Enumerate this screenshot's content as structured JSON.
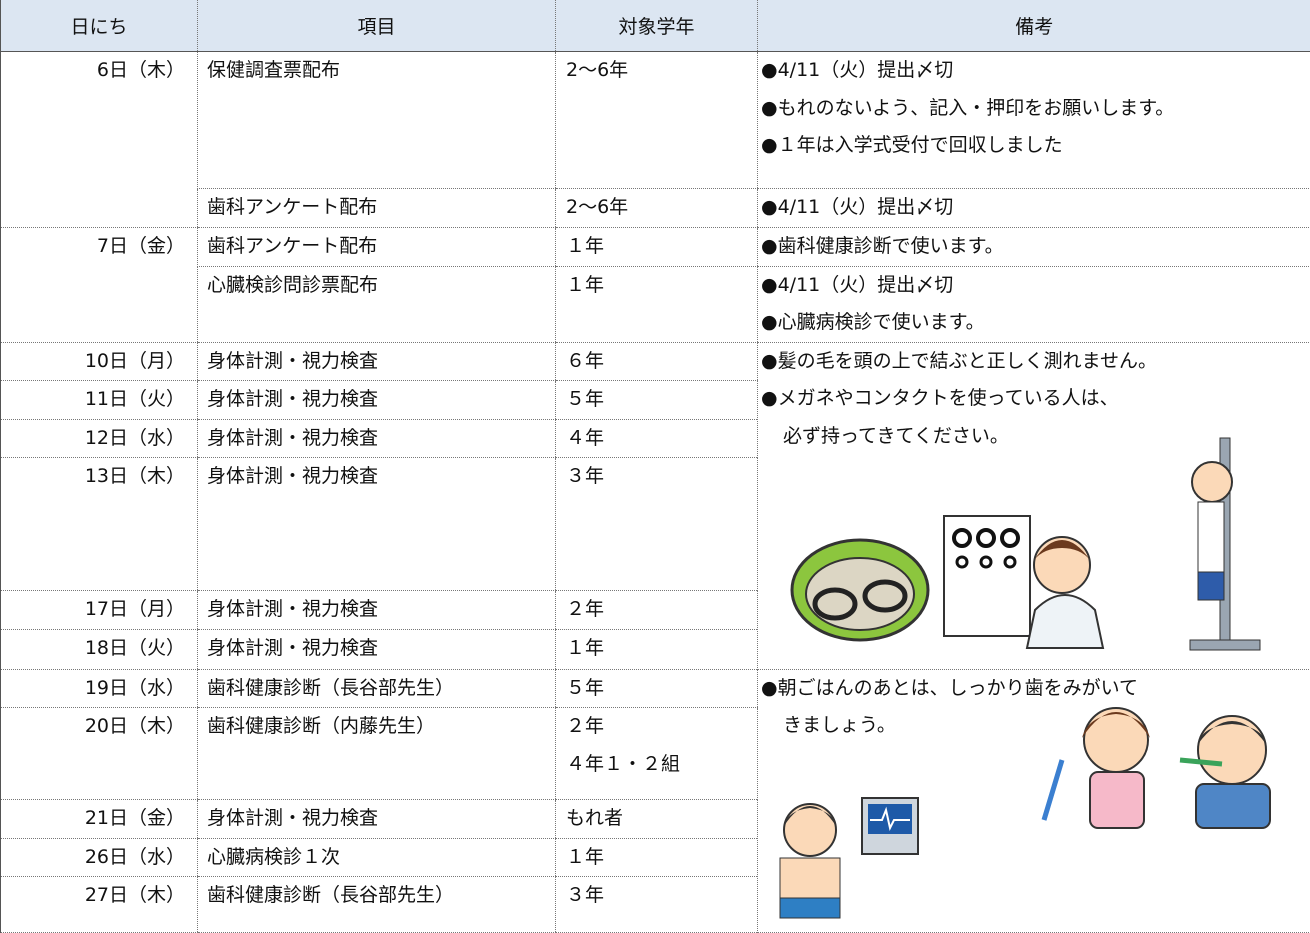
{
  "table": {
    "header": [
      "日にち",
      "項目",
      "対象学年",
      "備考"
    ],
    "rows": [
      {
        "date": "6日（木）",
        "item": "保健調査票配布",
        "grade": [
          "2～6年"
        ],
        "notes": [
          [
            "●4/11（火）提出〆切"
          ],
          [
            "●もれのないよう、記入・押印をお願いします。"
          ],
          [
            "●１年は入学式受付で回収しました"
          ]
        ]
      },
      {
        "item": "歯科アンケート配布",
        "grade": [
          "2～6年"
        ],
        "notes": [
          [
            "●4/11（火）提出〆切"
          ]
        ]
      },
      {
        "date": "7日（金）",
        "item": "歯科アンケート配布",
        "grade": [
          "１年"
        ],
        "notes": [
          [
            "●歯科健康診断で使います。"
          ]
        ]
      },
      {
        "item": "心臓検診問診票配布",
        "grade": [
          "１年"
        ],
        "notes": [
          [
            "●4/11（火）提出〆切"
          ],
          [
            "●心臓病検診で使います。"
          ]
        ]
      },
      {
        "date": "10日（月）",
        "item": "身体計測・視力検査",
        "grade": [
          "６年"
        ],
        "notes": [
          [
            "●髪の毛を頭の上で結ぶと正しく測れません。"
          ],
          [
            "●メガネやコンタクトを使っている人は、",
            "必ず持ってきてください。"
          ]
        ]
      },
      {
        "date": "11日（火）",
        "item": "身体計測・視力検査",
        "grade": [
          "５年"
        ]
      },
      {
        "date": "12日（水）",
        "item": "身体計測・視力検査",
        "grade": [
          "４年"
        ]
      },
      {
        "date": "13日（木）",
        "item": "身体計測・視力検査",
        "grade": [
          "３年"
        ]
      },
      {
        "date": "17日（月）",
        "item": "身体計測・視力検査",
        "grade": [
          "２年"
        ]
      },
      {
        "date": "18日（火）",
        "item": "身体計測・視力検査",
        "grade": [
          "１年"
        ]
      },
      {
        "date": "19日（水）",
        "item": "歯科健康診断（長谷部先生）",
        "grade": [
          "５年"
        ],
        "notes": [
          [
            "●朝ごはんのあとは、しっかり歯をみがいて",
            "きましょう。"
          ]
        ]
      },
      {
        "date": "20日（木）",
        "item": "歯科健康診断（内藤先生）",
        "grade": [
          "２年",
          "４年１・２組"
        ]
      },
      {
        "date": "21日（金）",
        "item": "身体計測・視力検査",
        "grade": [
          "もれ者"
        ]
      },
      {
        "date": "26日（水）",
        "item": "心臓病検診１次",
        "grade": [
          "１年"
        ]
      },
      {
        "date": "27日（木）",
        "item": "歯科健康診断（長谷部先生）",
        "grade": [
          "３年"
        ]
      }
    ]
  }
}
